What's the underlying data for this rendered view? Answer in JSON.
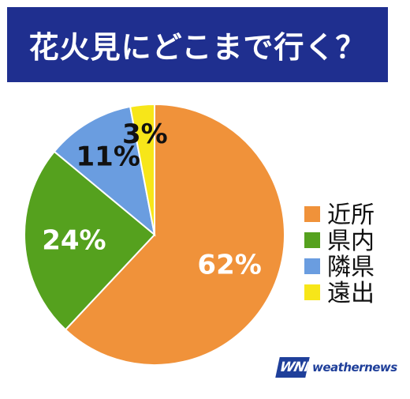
{
  "chart_data": {
    "type": "pie",
    "title": "花火見にどこまで行く？",
    "categories": [
      "近所",
      "県内",
      "隣県",
      "遠出"
    ],
    "values": [
      62,
      24,
      11,
      3
    ],
    "data_labels": [
      "62%",
      "24%",
      "11%",
      "3%"
    ],
    "colors": [
      "#f0923a",
      "#55a11e",
      "#6a9de0",
      "#f7e619"
    ],
    "label_colors": [
      "#ffffff",
      "#ffffff",
      "#111111",
      "#111111"
    ],
    "legend_placement": "right",
    "start_direction": "top",
    "direction": "clockwise"
  },
  "branding": {
    "logo_mark": "WNI",
    "logo_text": "weathernews",
    "logo_color": "#1f3f9a"
  },
  "header": {
    "background": "#1f2f8f"
  }
}
